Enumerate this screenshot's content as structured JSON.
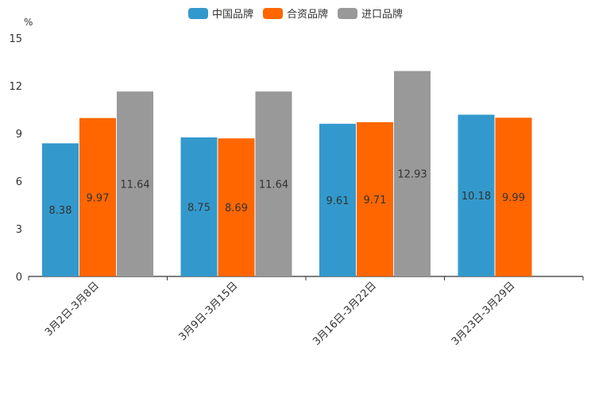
{
  "chart_data": {
    "type": "bar",
    "unit": "%",
    "categories": [
      "3月2日-3月8日",
      "3月9日-3月15日",
      "3月16日-3月22日",
      "3月23日-3月29日"
    ],
    "series": [
      {
        "name": "中国品牌",
        "color": "#3399cc",
        "values": [
          8.38,
          8.75,
          9.61,
          10.18
        ],
        "labels": [
          "8.38",
          "8.75",
          "9.61",
          "10.18"
        ]
      },
      {
        "name": "合资品牌",
        "color": "#ff6600",
        "values": [
          9.97,
          8.69,
          9.71,
          9.99
        ],
        "labels": [
          "9.97",
          "8.69",
          "9.71",
          "9.99"
        ]
      },
      {
        "name": "进口品牌",
        "color": "#999999",
        "values": [
          11.64,
          11.64,
          12.93,
          null
        ],
        "labels": [
          "11.64",
          "11.64",
          "12.93",
          null
        ]
      }
    ],
    "yticks": [
      "0",
      "3",
      "6",
      "9",
      "12",
      "15"
    ],
    "ylim": [
      0,
      15
    ],
    "legend_position": "top-center"
  }
}
